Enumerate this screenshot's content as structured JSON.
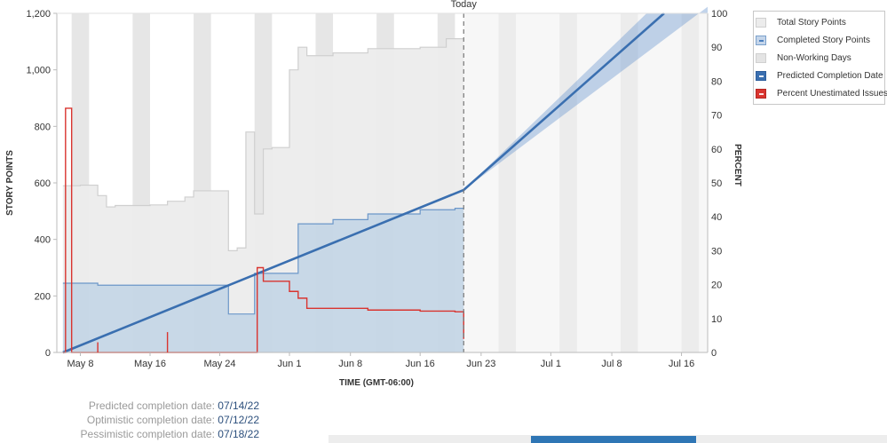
{
  "chart_data": {
    "type": "line",
    "today_label": "Today",
    "today_x": "Jun 21",
    "xlabel": "TIME (GMT-06:00)",
    "ylabel_left": "STORY POINTS",
    "ylabel_right": "PERCENT",
    "x_ticks": [
      "May 8",
      "May 16",
      "May 24",
      "Jun 1",
      "Jun 8",
      "Jun 16",
      "Jun 23",
      "Jul 1",
      "Jul 8",
      "Jul 16"
    ],
    "ylim_left": [
      0,
      1200
    ],
    "y_ticks_left": [
      "0",
      "200",
      "400",
      "600",
      "800",
      "1,000",
      "1,200"
    ],
    "ylim_right": [
      0,
      100
    ],
    "y_ticks_right": [
      "0",
      "10",
      "20",
      "30",
      "40",
      "50",
      "60",
      "70",
      "80",
      "90",
      "100"
    ],
    "non_working_days": true,
    "grid": false,
    "legend_position": "top-right",
    "series": [
      {
        "name": "Total Story Points",
        "color": "#cfcfcf",
        "x": [
          "May 6",
          "May 8",
          "May 10",
          "May 11",
          "May 12",
          "May 16",
          "May 18",
          "May 20",
          "May 21",
          "May 24",
          "May 25",
          "May 26",
          "May 27",
          "May 28",
          "May 29",
          "May 30",
          "Jun 1",
          "Jun 2",
          "Jun 3",
          "Jun 6",
          "Jun 10",
          "Jun 16",
          "Jun 19",
          "Jun 21"
        ],
        "values": [
          590,
          592,
          555,
          515,
          520,
          522,
          535,
          550,
          572,
          572,
          360,
          370,
          780,
          490,
          720,
          725,
          1000,
          1080,
          1050,
          1060,
          1075,
          1080,
          1110,
          1110
        ]
      },
      {
        "name": "Completed Story Points",
        "color": "#7ba1cc",
        "x": [
          "May 6",
          "May 10",
          "May 25",
          "May 28",
          "Jun 2",
          "Jun 6",
          "Jun 10",
          "Jun 16",
          "Jun 20",
          "Jun 21"
        ],
        "values": [
          245,
          238,
          136,
          280,
          455,
          470,
          490,
          505,
          510,
          510
        ]
      },
      {
        "name": "Predicted Completion Date",
        "color": "#3a6fb0",
        "x": [
          "May 6",
          "Jun 21",
          "Jul 14"
        ],
        "values": [
          0,
          575,
          1200
        ],
        "confidence_band": {
          "optimistic": "07/12/22",
          "pessimistic": "07/18/22"
        }
      },
      {
        "name": "Percent Unestimated Issues",
        "color": "#d9342f",
        "axis": "right",
        "x": [
          "May 6",
          "May 6.3",
          "May 7",
          "May 28",
          "May 28.3",
          "May 29",
          "Jun 1",
          "Jun 2",
          "Jun 3",
          "Jun 10",
          "Jun 16",
          "Jun 20",
          "Jun 21"
        ],
        "values": [
          0,
          72,
          0,
          0,
          25,
          21,
          18,
          16,
          13,
          12.5,
          12.2,
          12,
          4
        ]
      }
    ]
  },
  "legend": {
    "items": [
      {
        "label": "Total Story Points"
      },
      {
        "label": "Completed Story Points"
      },
      {
        "label": "Non-Working Days"
      },
      {
        "label": "Predicted Completion Date"
      },
      {
        "label": "Percent Unestimated Issues"
      }
    ]
  },
  "completion": {
    "predicted_label": "Predicted completion date:",
    "predicted_value": "07/14/22",
    "optimistic_label": "Optimistic completion date:",
    "optimistic_value": "07/12/22",
    "pessimistic_label": "Pessimistic completion date:",
    "pessimistic_value": "07/18/22"
  }
}
